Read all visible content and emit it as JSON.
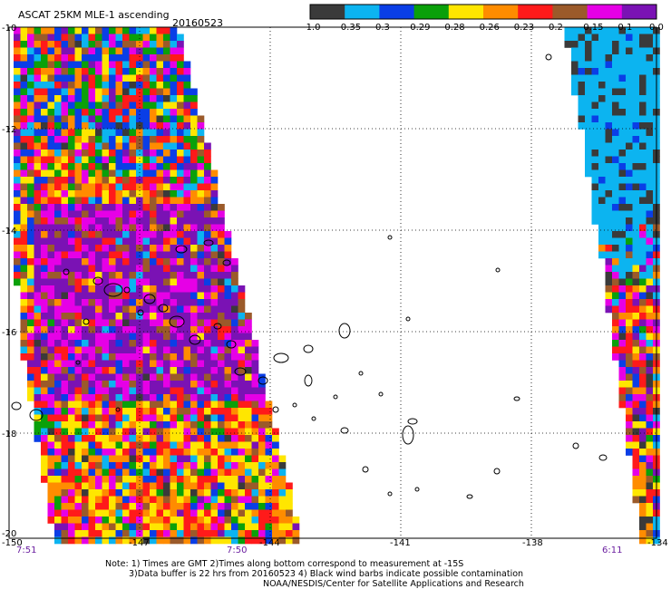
{
  "header": {
    "product": "ASCAT 25KM MLE-1 ascending",
    "date": "20160523"
  },
  "colorbar": {
    "colors": [
      "#3a3a3a",
      "#0cb4f0",
      "#0a3ee6",
      "#0aa00a",
      "#ffe600",
      "#ff8c00",
      "#ff1a1a",
      "#9b5a2a",
      "#e600e6",
      "#7a12b4"
    ],
    "labels": [
      "-1.0",
      "-0.35",
      "-0.3",
      "-0.29",
      "-0.28",
      "-0.26",
      "-0.23",
      "-0.2",
      "-0.15",
      "-0.1",
      "0.0"
    ]
  },
  "map": {
    "lat_labels": [
      "-10",
      "-12",
      "-14",
      "-16",
      "-18",
      "-20"
    ],
    "lon_labels": [
      "-150",
      "-147",
      "-144",
      "-141",
      "-138",
      "-134"
    ],
    "times": [
      "7:51",
      "7:50",
      "6:11"
    ]
  },
  "notes": {
    "line1": "Note: 1) Times are GMT 2)Times along bottom correspond to measurement at -15S",
    "line2": "3)Data buffer is 22 hrs from 20160523 4) Black wind barbs indicate possible contamination",
    "line3": "NOAA/NESDIS/Center for Satellite Applications and Research"
  }
}
